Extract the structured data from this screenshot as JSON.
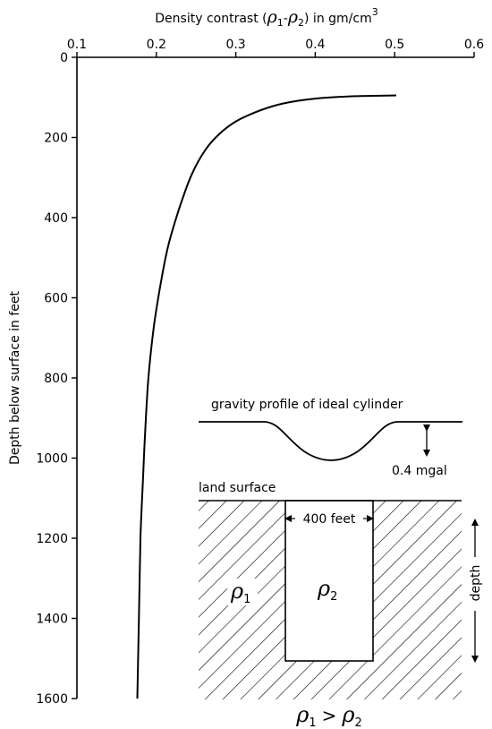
{
  "chart_data": {
    "type": "line",
    "title": "",
    "xlabel": "Density contrast (ρ1 - ρ2) in gm/cm³",
    "xlabel_parts": {
      "prefix": "Density contrast (",
      "rho": "ρ",
      "sub1": "1",
      "dash": "-",
      "sub2": "2",
      "suffix": ") in gm/cm",
      "sup": "3"
    },
    "ylabel": "Depth below surface in feet",
    "xlim": [
      0.1,
      0.6
    ],
    "ylim": [
      0,
      1600
    ],
    "x_axis_position": "top",
    "y_axis_inverted": true,
    "grid": false,
    "x_ticks": [
      "0.1",
      "0.2",
      "0.3",
      "0.4",
      "0.5",
      "0.6"
    ],
    "y_ticks": [
      "0",
      "200",
      "400",
      "600",
      "800",
      "1000",
      "1200",
      "1400",
      "1600"
    ],
    "series": [
      {
        "x": [
          0.502,
          0.45,
          0.4,
          0.36,
          0.33,
          0.3,
          0.28,
          0.262,
          0.245,
          0.23,
          0.215,
          0.205,
          0.197,
          0.19,
          0.186,
          0.183,
          0.18,
          0.178,
          0.176
        ],
        "y": [
          95,
          97,
          103,
          115,
          133,
          160,
          190,
          230,
          290,
          370,
          470,
          570,
          670,
          800,
          930,
          1060,
          1200,
          1400,
          1600
        ]
      }
    ]
  },
  "inset": {
    "gravity_title": "gravity profile of ideal cylinder",
    "gravity_amplitude": "0.4 mgal",
    "land_surface": "land surface",
    "width_label": "400 feet",
    "depth_label": "depth",
    "rho1": "ρ",
    "rho1_sub": "1",
    "rho2": "ρ",
    "rho2_sub": "2",
    "relation": {
      "a": "ρ",
      "a_sub": "1",
      "op": ">",
      "b": "ρ",
      "b_sub": "2"
    }
  }
}
